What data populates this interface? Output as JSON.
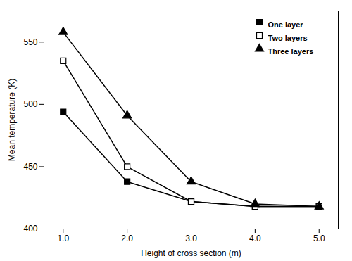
{
  "chart_data": {
    "type": "line",
    "xlabel": "Height of cross section (m)",
    "ylabel": "Mean temperature (K)",
    "x": [
      1,
      2,
      3,
      4,
      5
    ],
    "series": [
      {
        "name": "One layer",
        "color": "#000000",
        "marker": "square",
        "values": [
          494,
          438,
          422,
          418,
          418
        ]
      },
      {
        "name": "Two layers",
        "color": "#000000",
        "marker": "square-open",
        "values": [
          535,
          450,
          422,
          418,
          418
        ]
      },
      {
        "name": "Three layers",
        "color": "#000000",
        "marker": "triangle",
        "values": [
          558,
          491,
          438,
          420,
          418
        ]
      }
    ],
    "xlim": [
      0.7,
      5.3
    ],
    "ylim": [
      400,
      575
    ],
    "xticks": [
      1,
      2,
      3,
      4,
      5
    ],
    "yticks": [
      400,
      450,
      500,
      550
    ],
    "grid": false,
    "legend": "upper right"
  }
}
